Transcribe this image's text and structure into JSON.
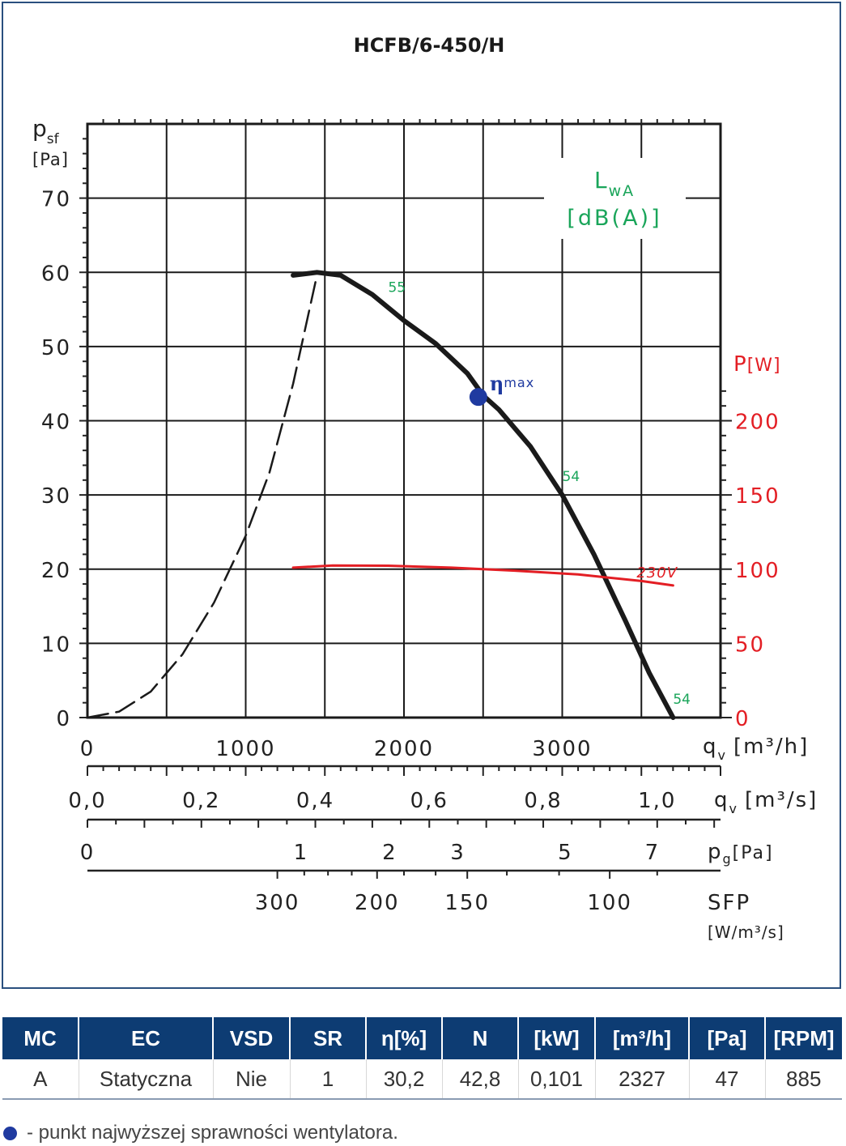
{
  "chart_data": {
    "type": "line",
    "title": "HCFB/6-450/H",
    "y_label": "p",
    "y_label_sub": "sf",
    "y_unit": "[Pa]",
    "y_ticks": [
      0,
      10,
      20,
      30,
      40,
      50,
      60,
      70
    ],
    "ylim": [
      0,
      80
    ],
    "x_label": "q",
    "x_label_sub": "v",
    "x_unit_m3h": "[m³/h]",
    "x_ticks_m3h": [
      "0",
      "1000",
      "2000",
      "3000"
    ],
    "xlim_m3h": [
      0,
      4000
    ],
    "x_unit_m3s": "[m³/s]",
    "x_ticks_m3s": [
      "0,0",
      "0,2",
      "0,4",
      "0,6",
      "0,8",
      "1,0"
    ],
    "pg_label": "p",
    "pg_label_sub": "g",
    "pg_unit": "[Pa]",
    "pg_ticks": [
      {
        "label": "0",
        "qv": 0
      },
      {
        "label": "1",
        "qv": 1350
      },
      {
        "label": "2",
        "qv": 1910
      },
      {
        "label": "3",
        "qv": 2340
      },
      {
        "label": "5",
        "qv": 3020
      },
      {
        "label": "7",
        "qv": 3570
      }
    ],
    "sfp_label": "SFP",
    "sfp_unit": "[W/m³/s]",
    "sfp_ticks": [
      {
        "label": "300",
        "qv": 1200
      },
      {
        "label": "200",
        "qv": 1830
      },
      {
        "label": "150",
        "qv": 2400
      },
      {
        "label": "100",
        "qv": 3300
      }
    ],
    "power_axis_label": "P",
    "power_axis_unit": "[W]",
    "power_ticks": [
      0,
      50,
      100,
      150,
      200
    ],
    "power_lim": [
      0,
      400
    ],
    "lwa_label": "L",
    "lwa_label_sub": "wA",
    "lwa_unit": "[dB(A)]",
    "series": [
      {
        "name": "pressure-unstable",
        "style": "dashed",
        "color": "#1a1a1a",
        "points": [
          [
            0,
            0
          ],
          [
            200,
            0.8
          ],
          [
            400,
            3.5
          ],
          [
            600,
            8.5
          ],
          [
            800,
            15.5
          ],
          [
            1000,
            24.5
          ],
          [
            1150,
            33
          ],
          [
            1300,
            45
          ],
          [
            1450,
            59.6
          ]
        ]
      },
      {
        "name": "pressure",
        "style": "solid",
        "color": "#1a1a1a",
        "points": [
          [
            1300,
            59.6
          ],
          [
            1450,
            60
          ],
          [
            1600,
            59.6
          ],
          [
            1800,
            57
          ],
          [
            2000,
            53.5
          ],
          [
            2200,
            50.4
          ],
          [
            2400,
            46.4
          ],
          [
            2500,
            43.4
          ],
          [
            2600,
            41.5
          ],
          [
            2800,
            36.5
          ],
          [
            3000,
            30
          ],
          [
            3200,
            22
          ],
          [
            3400,
            13
          ],
          [
            3550,
            6
          ],
          [
            3700,
            0
          ]
        ]
      },
      {
        "name": "230V",
        "style": "solid",
        "color": "#e31e24",
        "points": [
          [
            1300,
            101
          ],
          [
            1550,
            102.5
          ],
          [
            1900,
            102.3
          ],
          [
            2300,
            101
          ],
          [
            2700,
            99
          ],
          [
            3100,
            96.5
          ],
          [
            3500,
            92
          ],
          [
            3700,
            89
          ]
        ]
      }
    ],
    "noise_labels": [
      {
        "text": "55",
        "qv": 1900,
        "psf": 58
      },
      {
        "text": "54",
        "qv": 3000,
        "psf": 32.5
      },
      {
        "text": "54",
        "qv": 3700,
        "psf": 2.5
      }
    ],
    "power_series_label": "230V",
    "eta_max_point": {
      "qv": 2470,
      "psf": 43.2
    },
    "eta_max_label": "η",
    "eta_max_sub": "max",
    "colors": {
      "frame": "#2a4f7e",
      "noise": "#1aa55a",
      "power": "#e31e24",
      "eta_point": "#1f3aa0",
      "grid": "#1a1a1a"
    }
  },
  "table": {
    "headers": [
      "MC",
      "EC",
      "VSD",
      "SR",
      "η[%]",
      "N",
      "[kW]",
      "[m³/h]",
      "[Pa]",
      "[RPM]"
    ],
    "row": [
      "A",
      "Statyczna",
      "Nie",
      "1",
      "30,2",
      "42,8",
      "0,101",
      "2327",
      "47",
      "885"
    ]
  },
  "footnote": {
    "text": "- punkt najwyższej sprawności wentylatora.",
    "marker_color": "#1f3aa0"
  }
}
